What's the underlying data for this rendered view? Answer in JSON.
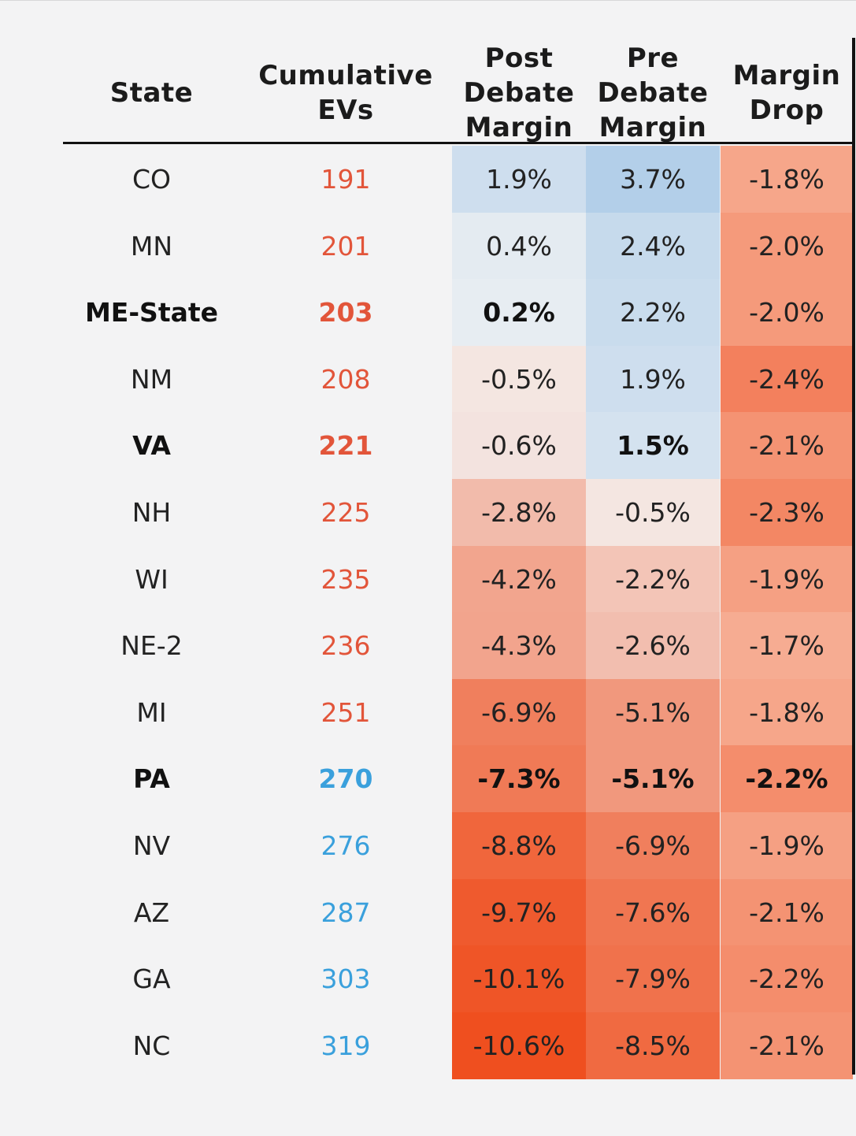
{
  "chart_data": {
    "type": "table",
    "columns": [
      {
        "key": "state",
        "lines": [
          "State"
        ]
      },
      {
        "key": "ev",
        "lines": [
          "Cumulative",
          "EVs"
        ]
      },
      {
        "key": "post",
        "lines": [
          "Post",
          "Debate",
          "Margin"
        ]
      },
      {
        "key": "pre",
        "lines": [
          "Pre",
          "Debate",
          "Margin"
        ]
      },
      {
        "key": "drop",
        "lines": [
          "Margin",
          "Drop"
        ]
      }
    ],
    "rows": [
      {
        "state": "CO",
        "ev": "191",
        "post": "1.9%",
        "pre": "3.7%",
        "drop": "-1.8%",
        "bold": false,
        "ev_side": "red",
        "post_bold": false,
        "pre_bold": false,
        "drop_bold": false
      },
      {
        "state": "MN",
        "ev": "201",
        "post": "0.4%",
        "pre": "2.4%",
        "drop": "-2.0%",
        "bold": false,
        "ev_side": "red",
        "post_bold": false,
        "pre_bold": false,
        "drop_bold": false
      },
      {
        "state": "ME-State",
        "ev": "203",
        "post": "0.2%",
        "pre": "2.2%",
        "drop": "-2.0%",
        "bold": true,
        "ev_side": "red",
        "post_bold": true,
        "pre_bold": false,
        "drop_bold": false
      },
      {
        "state": "NM",
        "ev": "208",
        "post": "-0.5%",
        "pre": "1.9%",
        "drop": "-2.4%",
        "bold": false,
        "ev_side": "red",
        "post_bold": false,
        "pre_bold": false,
        "drop_bold": false
      },
      {
        "state": "VA",
        "ev": "221",
        "post": "-0.6%",
        "pre": "1.5%",
        "drop": "-2.1%",
        "bold": true,
        "ev_side": "red",
        "post_bold": false,
        "pre_bold": true,
        "drop_bold": false
      },
      {
        "state": "NH",
        "ev": "225",
        "post": "-2.8%",
        "pre": "-0.5%",
        "drop": "-2.3%",
        "bold": false,
        "ev_side": "red",
        "post_bold": false,
        "pre_bold": false,
        "drop_bold": false
      },
      {
        "state": "WI",
        "ev": "235",
        "post": "-4.2%",
        "pre": "-2.2%",
        "drop": "-1.9%",
        "bold": false,
        "ev_side": "red",
        "post_bold": false,
        "pre_bold": false,
        "drop_bold": false
      },
      {
        "state": "NE-2",
        "ev": "236",
        "post": "-4.3%",
        "pre": "-2.6%",
        "drop": "-1.7%",
        "bold": false,
        "ev_side": "red",
        "post_bold": false,
        "pre_bold": false,
        "drop_bold": false
      },
      {
        "state": "MI",
        "ev": "251",
        "post": "-6.9%",
        "pre": "-5.1%",
        "drop": "-1.8%",
        "bold": false,
        "ev_side": "red",
        "post_bold": false,
        "pre_bold": false,
        "drop_bold": false
      },
      {
        "state": "PA",
        "ev": "270",
        "post": "-7.3%",
        "pre": "-5.1%",
        "drop": "-2.2%",
        "bold": true,
        "ev_side": "blue",
        "post_bold": true,
        "pre_bold": true,
        "drop_bold": true
      },
      {
        "state": "NV",
        "ev": "276",
        "post": "-8.8%",
        "pre": "-6.9%",
        "drop": "-1.9%",
        "bold": false,
        "ev_side": "blue",
        "post_bold": false,
        "pre_bold": false,
        "drop_bold": false
      },
      {
        "state": "AZ",
        "ev": "287",
        "post": "-9.7%",
        "pre": "-7.6%",
        "drop": "-2.1%",
        "bold": false,
        "ev_side": "blue",
        "post_bold": false,
        "pre_bold": false,
        "drop_bold": false
      },
      {
        "state": "GA",
        "ev": "303",
        "post": "-10.1%",
        "pre": "-7.9%",
        "drop": "-2.2%",
        "bold": false,
        "ev_side": "blue",
        "post_bold": false,
        "pre_bold": false,
        "drop_bold": false
      },
      {
        "state": "NC",
        "ev": "319",
        "post": "-10.6%",
        "pre": "-8.5%",
        "drop": "-2.1%",
        "bold": false,
        "ev_side": "blue",
        "post_bold": false,
        "pre_bold": false,
        "drop_bold": false
      }
    ]
  },
  "colors": {
    "ev_red": "#e2553a",
    "ev_blue": "#3aa0dc",
    "margin_blue": "#b3cfe9",
    "margin_red": "#ef4f1f",
    "margin_neutral": "#f4f4f4"
  }
}
